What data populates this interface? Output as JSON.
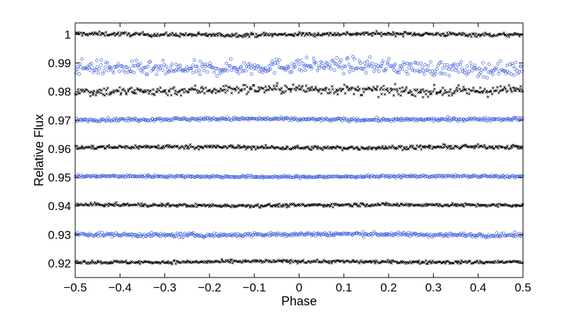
{
  "chart_data": {
    "type": "scatter",
    "xlabel": "Phase",
    "ylabel": "Relative Flux",
    "xlim": [
      -0.5,
      0.5
    ],
    "ylim": [
      0.915,
      1.004
    ],
    "xticks": [
      -0.5,
      -0.4,
      -0.3,
      -0.2,
      -0.1,
      0,
      0.1,
      0.2,
      0.3,
      0.4,
      0.5
    ],
    "xtick_labels": [
      "−0.5",
      "−0.4",
      "−0.3",
      "−0.2",
      "−0.1",
      "0",
      "0.1",
      "0.2",
      "0.3",
      "0.4",
      "0.5"
    ],
    "yticks": [
      0.92,
      0.93,
      0.94,
      0.95,
      0.96,
      0.97,
      0.98,
      0.99,
      1.0
    ],
    "ytick_labels": [
      "0.92",
      "0.93",
      "0.94",
      "0.95",
      "0.96",
      "0.97",
      "0.98",
      "0.99",
      "1"
    ],
    "grid": false,
    "series": [
      {
        "offset": 1.0,
        "marker": "cross",
        "color": "#000000",
        "scatter": 0.0005
      },
      {
        "offset": 0.9885,
        "marker": "circle",
        "color": "#3b5bdb",
        "scatter": 0.0018
      },
      {
        "offset": 0.9805,
        "marker": "cross",
        "color": "#000000",
        "scatter": 0.0012
      },
      {
        "offset": 0.9703,
        "marker": "circle",
        "color": "#3b5bdb",
        "scatter": 0.0004
      },
      {
        "offset": 0.9605,
        "marker": "cross",
        "color": "#000000",
        "scatter": 0.0005
      },
      {
        "offset": 0.9503,
        "marker": "circle",
        "color": "#3b5bdb",
        "scatter": 0.0003
      },
      {
        "offset": 0.9403,
        "marker": "cross",
        "color": "#000000",
        "scatter": 0.0004
      },
      {
        "offset": 0.93,
        "marker": "circle",
        "color": "#3b5bdb",
        "scatter": 0.0005
      },
      {
        "offset": 0.9205,
        "marker": "cross",
        "color": "#000000",
        "scatter": 0.0004
      }
    ]
  }
}
